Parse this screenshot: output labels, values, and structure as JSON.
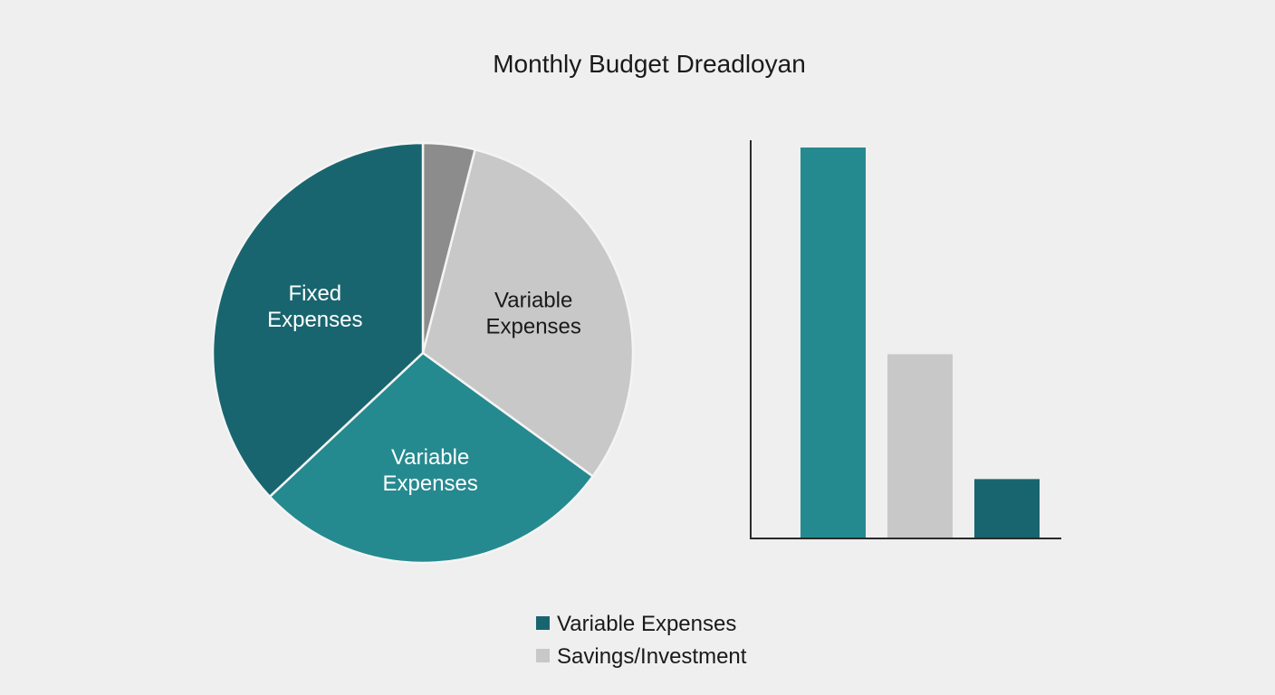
{
  "chart_data": [
    {
      "type": "pie",
      "title": "Monthly Budget Dreadloyan",
      "start_angle_deg": 0,
      "direction": "clockwise",
      "slices": [
        {
          "label": "",
          "value": 4,
          "color": "#8c8c8c",
          "label_color": "#ffffff"
        },
        {
          "label": "Variable\nExpenses",
          "value": 31,
          "color": "#c8c8c8",
          "label_color": "#1a1a1a"
        },
        {
          "label": "Variable\nExpenses",
          "value": 28,
          "color": "#258a8f",
          "label_color": "#ffffff"
        },
        {
          "label": "Fixed\nExpenses",
          "value": 37,
          "color": "#19656f",
          "label_color": "#ffffff"
        }
      ]
    },
    {
      "type": "bar",
      "categories": [
        "",
        "",
        ""
      ],
      "values": [
        100,
        47,
        15
      ],
      "colors": [
        "#258a8f",
        "#c8c8c8",
        "#19656f"
      ],
      "ylim": [
        0,
        102
      ],
      "xlabel": "",
      "ylabel": "",
      "grid": false,
      "axes": [
        "left",
        "bottom"
      ]
    }
  ],
  "legend": {
    "items": [
      {
        "label": "Variable Expenses",
        "color": "#19656f"
      },
      {
        "label": "Savings/Investment",
        "color": "#c8c8c8"
      }
    ]
  }
}
